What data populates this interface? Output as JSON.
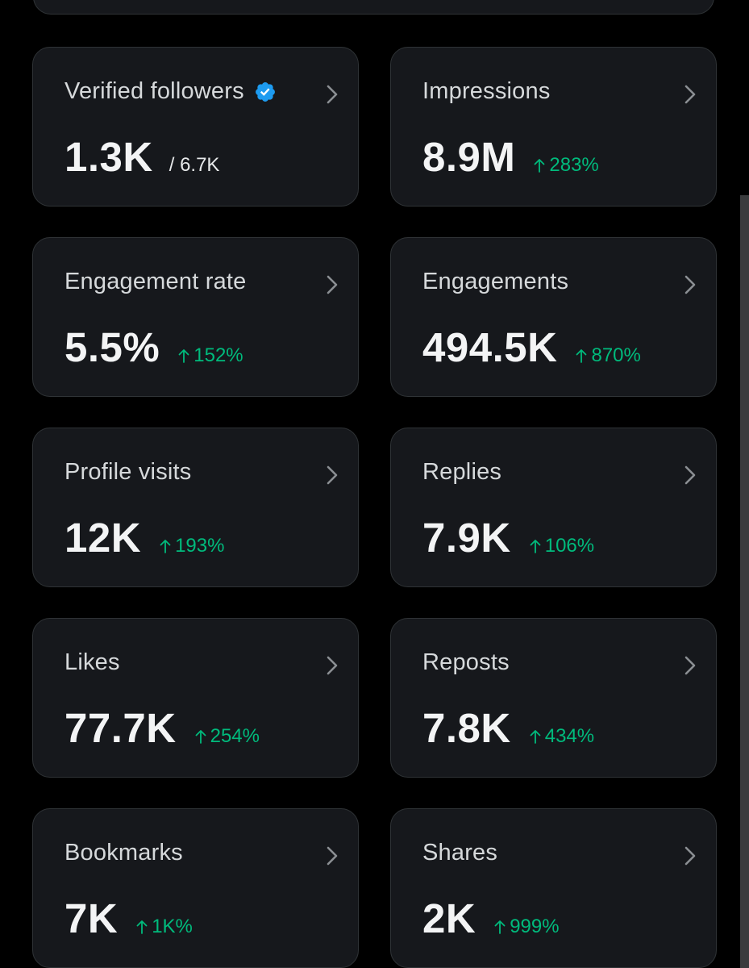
{
  "colors": {
    "background": "#000000",
    "card": "#16181c",
    "border": "#2f3336",
    "accent_green": "#00ba7c",
    "verified_blue": "#1d9bf0"
  },
  "cards": [
    {
      "title": "Verified followers",
      "value": "1.3K",
      "sub": "/ 6.7K",
      "icon": "verified-badge-icon"
    },
    {
      "title": "Impressions",
      "value": "8.9M",
      "delta": "283%"
    },
    {
      "title": "Engagement rate",
      "value": "5.5%",
      "delta": "152%"
    },
    {
      "title": "Engagements",
      "value": "494.5K",
      "delta": "870%"
    },
    {
      "title": "Profile visits",
      "value": "12K",
      "delta": "193%"
    },
    {
      "title": "Replies",
      "value": "7.9K",
      "delta": "106%"
    },
    {
      "title": "Likes",
      "value": "77.7K",
      "delta": "254%"
    },
    {
      "title": "Reposts",
      "value": "7.8K",
      "delta": "434%"
    },
    {
      "title": "Bookmarks",
      "value": "7K",
      "delta": "1K%"
    },
    {
      "title": "Shares",
      "value": "2K",
      "delta": "999%"
    }
  ]
}
